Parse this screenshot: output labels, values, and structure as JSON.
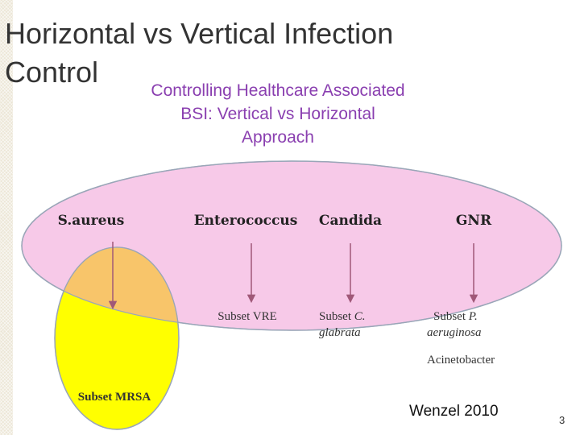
{
  "slide": {
    "title": "Horizontal vs Vertical Infection Control",
    "citation": "Wenzel 2010",
    "page_number": "3"
  },
  "diagram": {
    "title_lines": [
      "Controlling Healthcare Associated",
      "BSI: Vertical vs Horizontal",
      "Approach"
    ],
    "organisms": [
      "S.aureus",
      "Enterococcus",
      "Candida",
      "GNR"
    ],
    "subsets": {
      "vre": "Subset VRE",
      "candida_prefix": "Subset ",
      "candida_italic_1": "C.",
      "candida_italic_2": "glabrata",
      "pseudomonas_prefix": "Subset ",
      "pseudomonas_italic_1": "P.",
      "pseudomonas_italic_2": "aeruginosa",
      "acinetobacter": "Acinetobacter",
      "mrsa": "Subset MRSA"
    },
    "colors": {
      "horizontal_ellipse": "#f7c9e8",
      "vertical_ellipse": "#ffff00",
      "overlap": "#f8c56a",
      "title_text": "#8a3fb0",
      "arrow": "#a05878"
    }
  }
}
